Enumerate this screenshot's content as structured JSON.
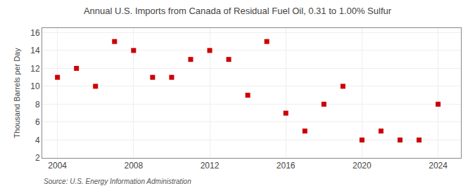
{
  "chart_data": {
    "type": "scatter",
    "title": "Annual U.S. Imports from Canada of Residual Fuel Oil, 0.31 to 1.00% Sulfur",
    "ylabel": "Thousand Barrels per Day",
    "annotations": [
      "Source: U.S. Energy Information Administration"
    ],
    "x": [
      2004,
      2005,
      2006,
      2007,
      2008,
      2009,
      2010,
      2011,
      2012,
      2013,
      2014,
      2015,
      2016,
      2017,
      2018,
      2019,
      2020,
      2021,
      2022,
      2023,
      2024
    ],
    "values": [
      11,
      12,
      10,
      15,
      14,
      11,
      11,
      13,
      14,
      13,
      9,
      15,
      7,
      5,
      8,
      10,
      4,
      5,
      4,
      4,
      8
    ],
    "color": "#cc0000",
    "marker": "square",
    "xlim": [
      2003.2,
      2025.2
    ],
    "ylim": [
      2,
      16.5
    ],
    "xticks": [
      2004,
      2008,
      2012,
      2016,
      2020,
      2024
    ],
    "yticks": [
      2,
      4,
      6,
      8,
      10,
      12,
      14,
      16
    ],
    "grid": true
  }
}
